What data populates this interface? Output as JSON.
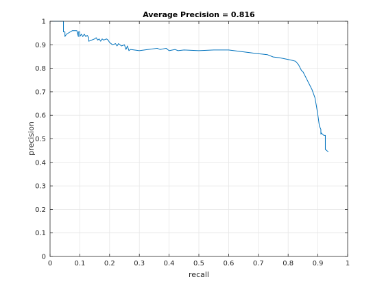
{
  "chart_data": {
    "type": "line",
    "title": "Average Precision = 0.816",
    "xlabel": "recall",
    "ylabel": "precision",
    "xlim": [
      0,
      1
    ],
    "ylim": [
      0,
      1
    ],
    "xticks": [
      "0",
      "0.1",
      "0.2",
      "0.3",
      "0.4",
      "0.5",
      "0.6",
      "0.7",
      "0.8",
      "0.9",
      "1"
    ],
    "yticks": [
      "0",
      "0.1",
      "0.2",
      "0.3",
      "0.4",
      "0.5",
      "0.6",
      "0.7",
      "0.8",
      "0.9",
      "1"
    ],
    "grid": true,
    "colors": {
      "line": "#0072bd",
      "grid": "#e6e6e6",
      "axes": "#262626"
    },
    "series": [
      {
        "x": [
          0,
          0.045,
          0.045,
          0.05,
          0.05,
          0.055,
          0.075,
          0.09,
          0.095,
          0.095,
          0.1,
          0.1,
          0.105,
          0.11,
          0.115,
          0.12,
          0.125,
          0.13,
          0.13,
          0.15,
          0.155,
          0.16,
          0.165,
          0.17,
          0.175,
          0.18,
          0.19,
          0.195,
          0.2,
          0.21,
          0.22,
          0.225,
          0.23,
          0.24,
          0.25,
          0.255,
          0.26,
          0.265,
          0.27,
          0.3,
          0.33,
          0.36,
          0.37,
          0.39,
          0.4,
          0.42,
          0.43,
          0.45,
          0.5,
          0.55,
          0.6,
          0.65,
          0.7,
          0.73,
          0.75,
          0.77,
          0.79,
          0.81,
          0.825,
          0.835,
          0.845,
          0.85,
          0.86,
          0.87,
          0.88,
          0.89,
          0.895,
          0.9,
          0.905,
          0.91,
          0.91,
          0.912,
          0.915,
          0.92,
          0.925,
          0.925,
          0.93,
          0.935
        ],
        "y": [
          1.0,
          1.0,
          0.955,
          0.955,
          0.935,
          0.945,
          0.96,
          0.96,
          0.935,
          0.955,
          0.955,
          0.935,
          0.945,
          0.935,
          0.945,
          0.935,
          0.94,
          0.93,
          0.915,
          0.925,
          0.93,
          0.92,
          0.925,
          0.915,
          0.925,
          0.92,
          0.925,
          0.92,
          0.91,
          0.9,
          0.905,
          0.895,
          0.905,
          0.895,
          0.9,
          0.88,
          0.895,
          0.875,
          0.88,
          0.875,
          0.88,
          0.885,
          0.88,
          0.885,
          0.875,
          0.88,
          0.875,
          0.878,
          0.875,
          0.878,
          0.878,
          0.87,
          0.862,
          0.858,
          0.848,
          0.845,
          0.84,
          0.835,
          0.83,
          0.815,
          0.79,
          0.785,
          0.76,
          0.735,
          0.71,
          0.675,
          0.64,
          0.6,
          0.555,
          0.54,
          0.52,
          0.525,
          0.52,
          0.515,
          0.515,
          0.455,
          0.45,
          0.445
        ]
      }
    ]
  }
}
